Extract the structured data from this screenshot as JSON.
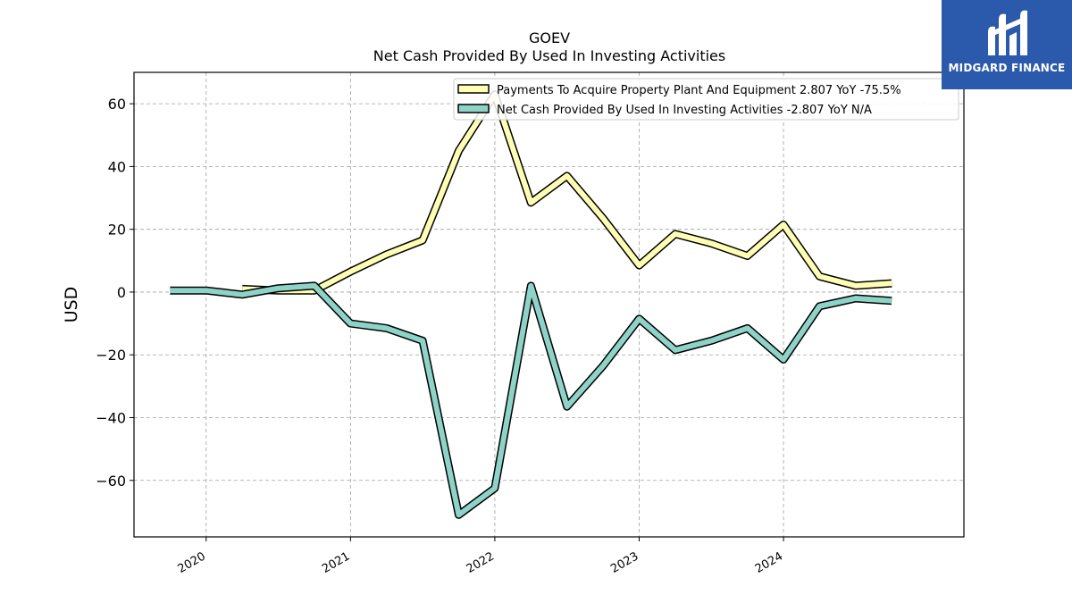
{
  "brand": {
    "name": "MIDGARD FINANCE",
    "logo_icon": "midgard-m-logo-icon",
    "background": "#2b59ab",
    "text_color": "#ffffff"
  },
  "chart_data": {
    "type": "line",
    "title": "GOEV",
    "subtitle": "Net Cash Provided By Used In Investing Activities",
    "xlabel": "",
    "ylabel": "USD",
    "ylim": [
      -78,
      70
    ],
    "yticks": [
      -60,
      -40,
      -20,
      0,
      20,
      40,
      60
    ],
    "ytick_labels": [
      "−60",
      "−40",
      "−20",
      "0",
      "20",
      "40",
      "60"
    ],
    "xlim": [
      2019.5,
      2025.25
    ],
    "xticks": [
      2020,
      2021,
      2022,
      2023,
      2024
    ],
    "xtick_labels": [
      "2020",
      "2021",
      "2022",
      "2023",
      "2024"
    ],
    "grid": true,
    "legend_position": "top-right",
    "series": [
      {
        "name": "Payments To Acquire Property Plant And Equipment  2.807 YoY -75.5%",
        "color": "#ffffb3",
        "points": [
          [
            2020.25,
            1.0
          ],
          [
            2020.5,
            0.5
          ],
          [
            2020.75,
            0.5
          ],
          [
            2021.0,
            6.5
          ],
          [
            2021.25,
            12.0
          ],
          [
            2021.5,
            16.5
          ],
          [
            2021.75,
            45.0
          ],
          [
            2022.0,
            63.0
          ],
          [
            2022.25,
            28.5
          ],
          [
            2022.5,
            37.0
          ],
          [
            2022.75,
            23.5
          ],
          [
            2023.0,
            8.5
          ],
          [
            2023.25,
            18.5
          ],
          [
            2023.5,
            15.5
          ],
          [
            2023.75,
            11.5
          ],
          [
            2024.0,
            21.5
          ],
          [
            2024.25,
            5.0
          ],
          [
            2024.5,
            2.0
          ],
          [
            2024.75,
            2.8
          ]
        ]
      },
      {
        "name": "Net Cash Provided By Used In Investing Activities  -2.807 YoY N/A",
        "color": "#8dd3c7",
        "points": [
          [
            2019.75,
            0.5
          ],
          [
            2020.0,
            0.5
          ],
          [
            2020.25,
            -0.8
          ],
          [
            2020.5,
            1.2
          ],
          [
            2020.75,
            2.0
          ],
          [
            2021.0,
            -10.0
          ],
          [
            2021.25,
            -11.5
          ],
          [
            2021.5,
            -15.5
          ],
          [
            2021.75,
            -71.0
          ],
          [
            2022.0,
            -62.5
          ],
          [
            2022.25,
            2.0
          ],
          [
            2022.5,
            -36.5
          ],
          [
            2022.75,
            -23.5
          ],
          [
            2023.0,
            -8.5
          ],
          [
            2023.25,
            -18.5
          ],
          [
            2023.5,
            -15.5
          ],
          [
            2023.75,
            -11.5
          ],
          [
            2024.0,
            -21.5
          ],
          [
            2024.25,
            -4.5
          ],
          [
            2024.5,
            -2.0
          ],
          [
            2024.75,
            -2.8
          ]
        ]
      }
    ]
  }
}
